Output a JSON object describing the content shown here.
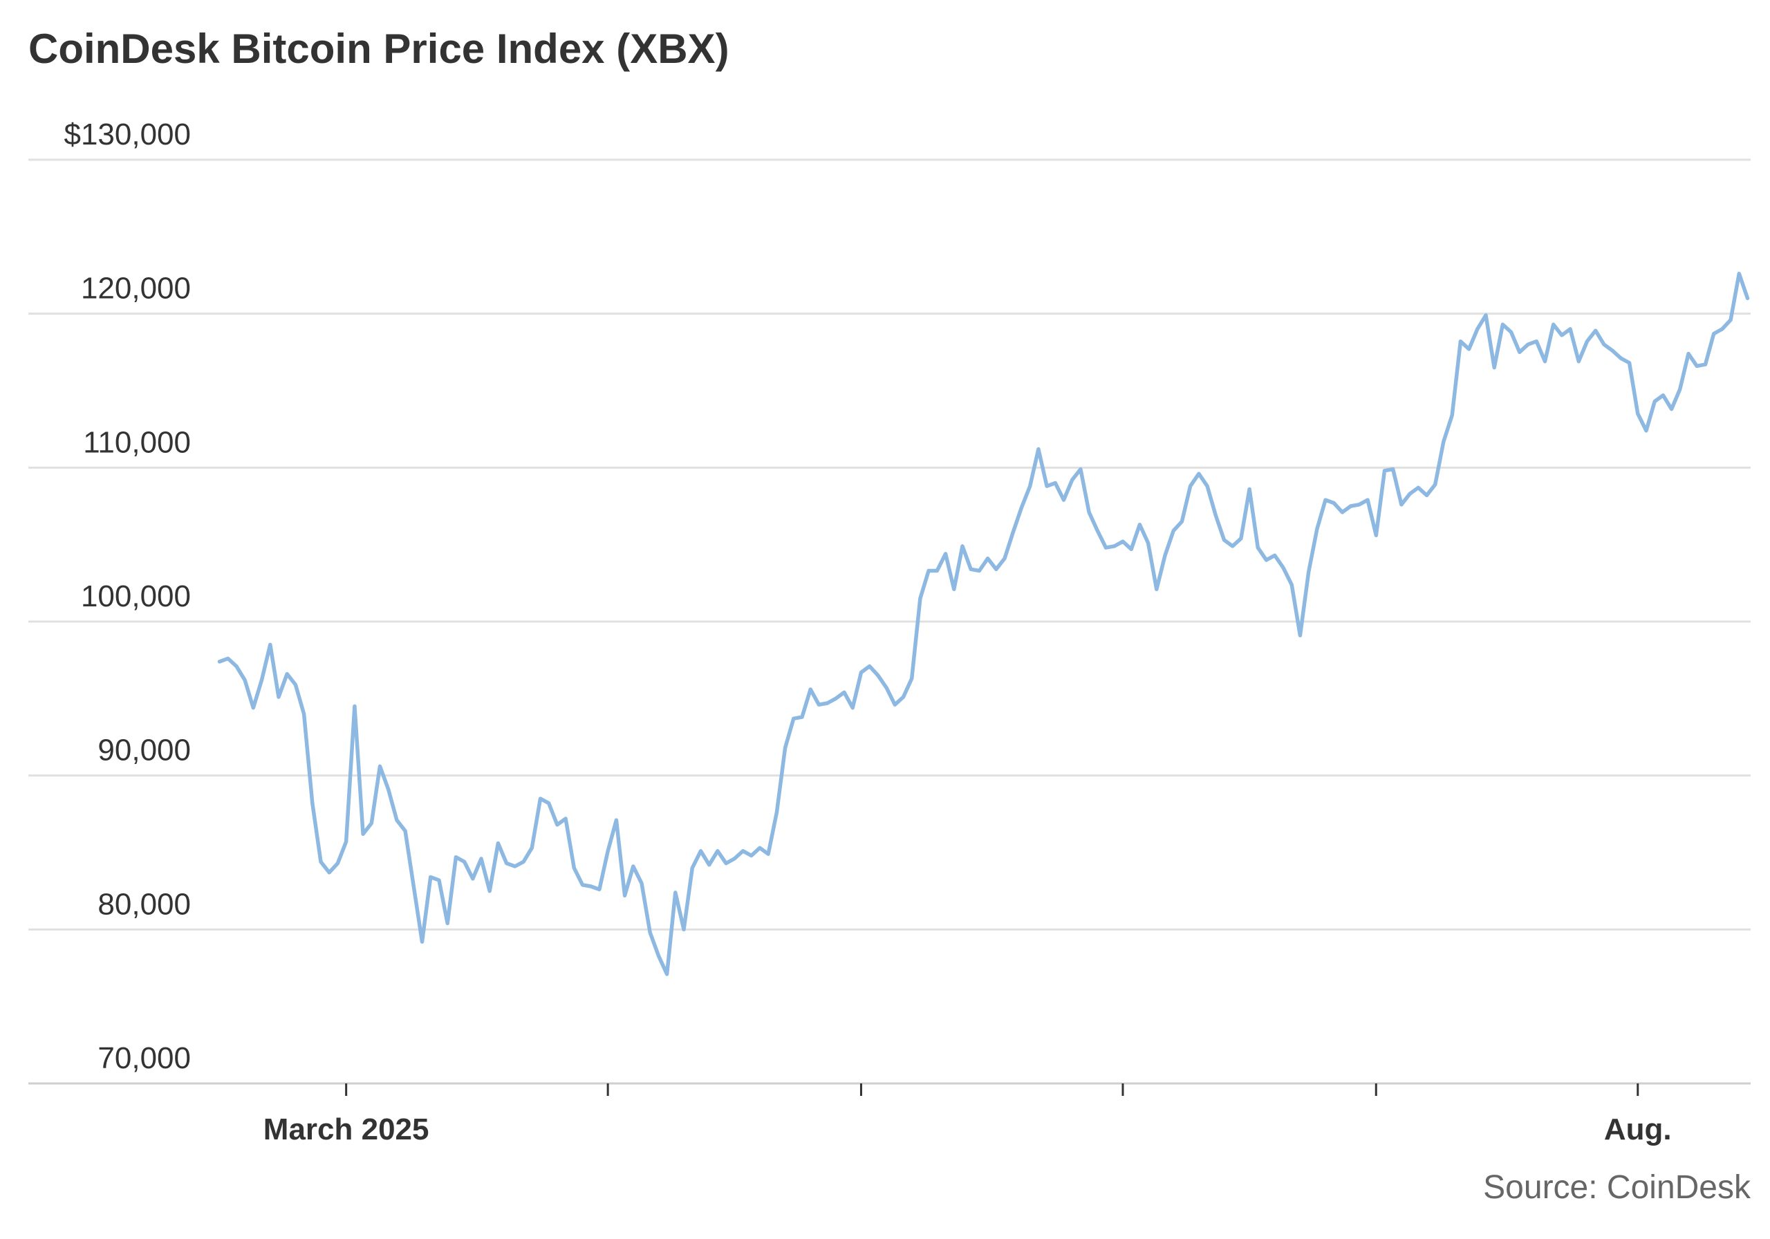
{
  "chart_data": {
    "type": "line",
    "title": "CoinDesk Bitcoin Price Index (XBX)",
    "source": "Source: CoinDesk",
    "line_color": "#8db8e2",
    "grid": true,
    "ylim": [
      70000,
      130000
    ],
    "yticks": [
      70000,
      80000,
      90000,
      100000,
      110000,
      120000,
      130000
    ],
    "ytick_labels": [
      "70,000",
      "80,000",
      "90,000",
      "100,000",
      "110,000",
      "120,000",
      "$130,000"
    ],
    "xlim": [
      "2025-02-14",
      "2025-08-14"
    ],
    "xticks": [
      "2025-03-01",
      "2025-04-01",
      "2025-05-01",
      "2025-06-01",
      "2025-07-01",
      "2025-08-01"
    ],
    "xtick_labels": [
      "March 2025",
      "",
      "",
      "",
      "",
      "Aug."
    ],
    "x": [
      "2025-02-14",
      "2025-02-15",
      "2025-02-16",
      "2025-02-17",
      "2025-02-18",
      "2025-02-19",
      "2025-02-20",
      "2025-02-21",
      "2025-02-22",
      "2025-02-23",
      "2025-02-24",
      "2025-02-25",
      "2025-02-26",
      "2025-02-27",
      "2025-02-28",
      "2025-03-01",
      "2025-03-02",
      "2025-03-03",
      "2025-03-04",
      "2025-03-05",
      "2025-03-06",
      "2025-03-07",
      "2025-03-08",
      "2025-03-09",
      "2025-03-10",
      "2025-03-11",
      "2025-03-12",
      "2025-03-13",
      "2025-03-14",
      "2025-03-15",
      "2025-03-16",
      "2025-03-17",
      "2025-03-18",
      "2025-03-19",
      "2025-03-20",
      "2025-03-21",
      "2025-03-22",
      "2025-03-23",
      "2025-03-24",
      "2025-03-25",
      "2025-03-26",
      "2025-03-27",
      "2025-03-28",
      "2025-03-29",
      "2025-03-30",
      "2025-03-31",
      "2025-04-01",
      "2025-04-02",
      "2025-04-03",
      "2025-04-04",
      "2025-04-05",
      "2025-04-06",
      "2025-04-07",
      "2025-04-08",
      "2025-04-09",
      "2025-04-10",
      "2025-04-11",
      "2025-04-12",
      "2025-04-13",
      "2025-04-14",
      "2025-04-15",
      "2025-04-16",
      "2025-04-17",
      "2025-04-18",
      "2025-04-19",
      "2025-04-20",
      "2025-04-21",
      "2025-04-22",
      "2025-04-23",
      "2025-04-24",
      "2025-04-25",
      "2025-04-26",
      "2025-04-27",
      "2025-04-28",
      "2025-04-29",
      "2025-04-30",
      "2025-05-01",
      "2025-05-02",
      "2025-05-03",
      "2025-05-04",
      "2025-05-05",
      "2025-05-06",
      "2025-05-07",
      "2025-05-08",
      "2025-05-09",
      "2025-05-10",
      "2025-05-11",
      "2025-05-12",
      "2025-05-13",
      "2025-05-14",
      "2025-05-15",
      "2025-05-16",
      "2025-05-17",
      "2025-05-18",
      "2025-05-19",
      "2025-05-20",
      "2025-05-21",
      "2025-05-22",
      "2025-05-23",
      "2025-05-24",
      "2025-05-25",
      "2025-05-26",
      "2025-05-27",
      "2025-05-28",
      "2025-05-29",
      "2025-05-30",
      "2025-05-31",
      "2025-06-01",
      "2025-06-02",
      "2025-06-03",
      "2025-06-04",
      "2025-06-05",
      "2025-06-06",
      "2025-06-07",
      "2025-06-08",
      "2025-06-09",
      "2025-06-10",
      "2025-06-11",
      "2025-06-12",
      "2025-06-13",
      "2025-06-14",
      "2025-06-15",
      "2025-06-16",
      "2025-06-17",
      "2025-06-18",
      "2025-06-19",
      "2025-06-20",
      "2025-06-21",
      "2025-06-22",
      "2025-06-23",
      "2025-06-24",
      "2025-06-25",
      "2025-06-26",
      "2025-06-27",
      "2025-06-28",
      "2025-06-29",
      "2025-06-30",
      "2025-07-01",
      "2025-07-02",
      "2025-07-03",
      "2025-07-04",
      "2025-07-05",
      "2025-07-06",
      "2025-07-07",
      "2025-07-08",
      "2025-07-09",
      "2025-07-10",
      "2025-07-11",
      "2025-07-12",
      "2025-07-13",
      "2025-07-14",
      "2025-07-15",
      "2025-07-16",
      "2025-07-17",
      "2025-07-18",
      "2025-07-19",
      "2025-07-20",
      "2025-07-21",
      "2025-07-22",
      "2025-07-23",
      "2025-07-24",
      "2025-07-25",
      "2025-07-26",
      "2025-07-27",
      "2025-07-28",
      "2025-07-29",
      "2025-07-30",
      "2025-07-31",
      "2025-08-01",
      "2025-08-02",
      "2025-08-03",
      "2025-08-04",
      "2025-08-05",
      "2025-08-06",
      "2025-08-07",
      "2025-08-08",
      "2025-08-09",
      "2025-08-10",
      "2025-08-11",
      "2025-08-12",
      "2025-08-13",
      "2025-08-14"
    ],
    "series": [
      {
        "values": [
          97400,
          97600,
          97100,
          96200,
          94400,
          96200,
          98500,
          95100,
          96600,
          95900,
          94000,
          88200,
          84400,
          83700,
          84300,
          85700,
          94500,
          86200,
          86900,
          90600,
          89100,
          87100,
          86400,
          82800,
          79200,
          83400,
          83200,
          80400,
          84700,
          84400,
          83300,
          84600,
          82500,
          85600,
          84300,
          84100,
          84400,
          85300,
          88500,
          88200,
          86800,
          87200,
          84000,
          82900,
          82800,
          82600,
          85100,
          87100,
          82200,
          84100,
          83000,
          79800,
          78300,
          77100,
          82400,
          80000,
          84000,
          85100,
          84200,
          85100,
          84300,
          84600,
          85100,
          84800,
          85300,
          84900,
          87600,
          91800,
          93700,
          93800,
          95600,
          94600,
          94700,
          95000,
          95400,
          94400,
          96700,
          97100,
          96500,
          95700,
          94600,
          95100,
          96300,
          101500,
          103300,
          103300,
          104400,
          102100,
          104900,
          103400,
          103300,
          104100,
          103400,
          104100,
          105800,
          107400,
          108800,
          111200,
          108800,
          109000,
          107900,
          109200,
          109900,
          107100,
          105900,
          104800,
          104900,
          105200,
          104700,
          106300,
          105100,
          102100,
          104300,
          105900,
          106500,
          108800,
          109600,
          108800,
          106900,
          105300,
          104900,
          105400,
          108600,
          104800,
          104000,
          104300,
          103500,
          102400,
          99100,
          103200,
          106000,
          107900,
          107700,
          107100,
          107500,
          107600,
          107900,
          105600,
          109800,
          109900,
          107600,
          108300,
          108700,
          108200,
          108900,
          111700,
          113400,
          118200,
          117700,
          119000,
          119900,
          116500,
          119300,
          118800,
          117500,
          118000,
          118200,
          116900,
          119300,
          118600,
          119000,
          116900,
          118200,
          118900,
          118000,
          117600,
          117100,
          116800,
          113500,
          112400,
          114300,
          114700,
          113800,
          115100,
          117400,
          116600,
          116700,
          118700,
          119000,
          119600,
          122600,
          121000
        ]
      }
    ]
  }
}
